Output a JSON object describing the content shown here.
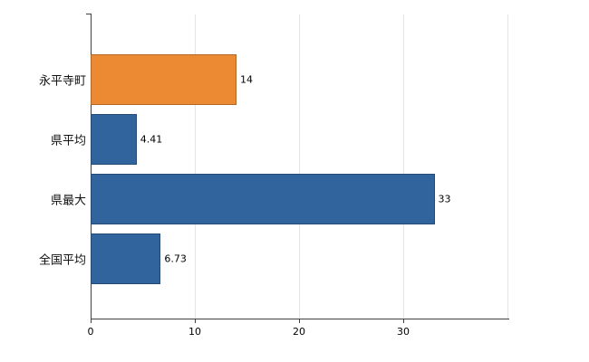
{
  "chart_data": {
    "type": "bar",
    "orientation": "horizontal",
    "title": "",
    "categories": [
      "永平寺町",
      "県平均",
      "県最大",
      "全国平均"
    ],
    "values": [
      14,
      4.41,
      33,
      6.73
    ],
    "value_labels": [
      "14",
      "4.41",
      "33",
      "6.73"
    ],
    "bar_colors": [
      "#EC8A33",
      "#31639C",
      "#31639C",
      "#31639C"
    ],
    "xlim": [
      0,
      40
    ],
    "x_ticks": [
      0,
      10,
      20,
      30
    ],
    "x_tick_labels": [
      "0",
      "10",
      "20",
      "30"
    ],
    "grid": true,
    "legend": "none",
    "background_color": "#FFFFFF",
    "axis_color": "#404040",
    "gridline_color": "#E5E5E5"
  }
}
